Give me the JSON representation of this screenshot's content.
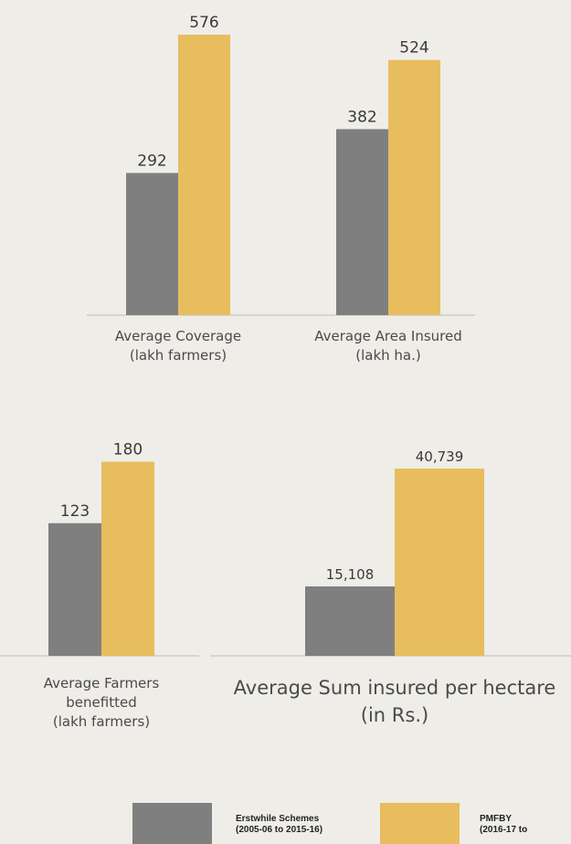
{
  "colors": {
    "erstwhile": "#7f7f7f",
    "pmfby": "#e8bd5e",
    "baseline": "#cfccc4",
    "value_text": "#3a3a3a"
  },
  "chart_data": [
    {
      "type": "bar",
      "categories": [
        "Average Coverage (lakh farmers)",
        "Average Area Insured (lakh ha.)"
      ],
      "category_lines": [
        [
          "Average Coverage",
          "(lakh farmers)"
        ],
        [
          "Average Area Insured",
          "(lakh ha.)"
        ]
      ],
      "series": [
        {
          "name": "Erstwhile Schemes (2005-06 to 2015-16)",
          "values": [
            292,
            382
          ],
          "labels": [
            "292",
            "382"
          ]
        },
        {
          "name": "PMFBY (2016-17 to",
          "values": [
            576,
            524
          ],
          "labels": [
            "576",
            "524"
          ]
        }
      ]
    },
    {
      "type": "bar",
      "categories": [
        "Average Farmers benefitted (lakh farmers)"
      ],
      "category_lines": [
        [
          "Average Farmers",
          "benefitted",
          "(lakh farmers)"
        ]
      ],
      "series": [
        {
          "name": "Erstwhile Schemes (2005-06 to 2015-16)",
          "values": [
            123
          ],
          "labels": [
            "123"
          ]
        },
        {
          "name": "PMFBY (2016-17 to",
          "values": [
            180
          ],
          "labels": [
            "180"
          ]
        }
      ]
    },
    {
      "type": "bar",
      "categories": [
        "Average Sum insured per hectare (in Rs.)"
      ],
      "category_lines": [
        [
          "Average Sum insured per hectare",
          "(in Rs.)"
        ]
      ],
      "series": [
        {
          "name": "Erstwhile Schemes (2005-06 to 2015-16)",
          "values": [
            15108
          ],
          "labels": [
            "15,108"
          ]
        },
        {
          "name": "PMFBY (2016-17 to",
          "values": [
            40739
          ],
          "labels": [
            "40,739"
          ]
        }
      ]
    }
  ],
  "legend": [
    {
      "lines": [
        "Erstwhile Schemes",
        "(2005-06 to 2015-16)"
      ],
      "series": "erstwhile"
    },
    {
      "lines": [
        "PMFBY",
        "(2016-17 to"
      ],
      "series": "pmfby"
    }
  ]
}
